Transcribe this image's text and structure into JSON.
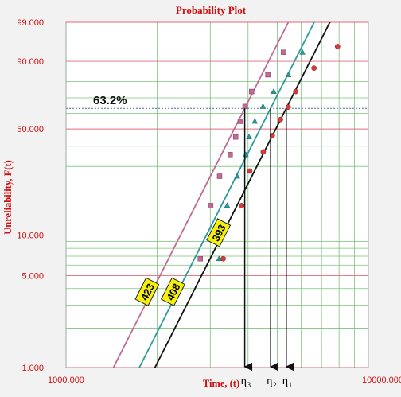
{
  "chart_data": {
    "type": "scatter",
    "title": "Probability Plot",
    "xlabel": "Time, (t)",
    "ylabel": "Unreliability, F(t)",
    "xscale": "log",
    "yscale": "weibull",
    "xlim": [
      1000,
      10000
    ],
    "ylim": [
      1,
      99
    ],
    "x_tick_labels": [
      "1000.000",
      "10000.000"
    ],
    "y_tick_labels": [
      "99.000",
      "90.000",
      "50.000",
      "10.000",
      "5.000",
      "1.000"
    ],
    "reference_line_label": "63.2%",
    "reference_line_value": 63.2,
    "grid": true,
    "series": [
      {
        "name": "423",
        "color": "#c06a94",
        "marker": "square",
        "points": [
          {
            "x": 2780,
            "y": 6.7
          },
          {
            "x": 3010,
            "y": 16.3
          },
          {
            "x": 3220,
            "y": 25.9
          },
          {
            "x": 3490,
            "y": 35.6
          },
          {
            "x": 3640,
            "y": 45.2
          },
          {
            "x": 3770,
            "y": 54.8
          },
          {
            "x": 3910,
            "y": 64.4
          },
          {
            "x": 4110,
            "y": 74.0
          },
          {
            "x": 4650,
            "y": 83.7
          },
          {
            "x": 5240,
            "y": 93.3
          }
        ],
        "fit": {
          "beta": 4.6,
          "eta": 3900
        }
      },
      {
        "name": "408",
        "color": "#2a9a9a",
        "marker": "triangle",
        "points": [
          {
            "x": 3210,
            "y": 6.7
          },
          {
            "x": 3410,
            "y": 16.3
          },
          {
            "x": 3680,
            "y": 25.9
          },
          {
            "x": 3930,
            "y": 35.6
          },
          {
            "x": 4030,
            "y": 45.2
          },
          {
            "x": 4210,
            "y": 54.8
          },
          {
            "x": 4480,
            "y": 64.4
          },
          {
            "x": 4860,
            "y": 74.0
          },
          {
            "x": 5440,
            "y": 83.7
          },
          {
            "x": 6050,
            "y": 93.3
          }
        ],
        "fit": {
          "beta": 4.6,
          "eta": 4750
        }
      },
      {
        "name": "393",
        "color": "#111111",
        "point_color": "#d83a3a",
        "marker": "circle",
        "points": [
          {
            "x": 3310,
            "y": 6.7
          },
          {
            "x": 3810,
            "y": 16.3
          },
          {
            "x": 4050,
            "y": 28.0
          },
          {
            "x": 4490,
            "y": 37.0
          },
          {
            "x": 4810,
            "y": 46.0
          },
          {
            "x": 5120,
            "y": 56.0
          },
          {
            "x": 5430,
            "y": 64.0
          },
          {
            "x": 5750,
            "y": 74.0
          },
          {
            "x": 6610,
            "y": 87.0
          },
          {
            "x": 7910,
            "y": 95.0
          }
        ],
        "fit": {
          "beta": 4.6,
          "eta": 5350
        }
      }
    ],
    "eta_markers": [
      {
        "label": "η",
        "sub": "3",
        "series": "423"
      },
      {
        "label": "η",
        "sub": "2",
        "series": "408"
      },
      {
        "label": "η",
        "sub": "1",
        "series": "393"
      }
    ]
  }
}
